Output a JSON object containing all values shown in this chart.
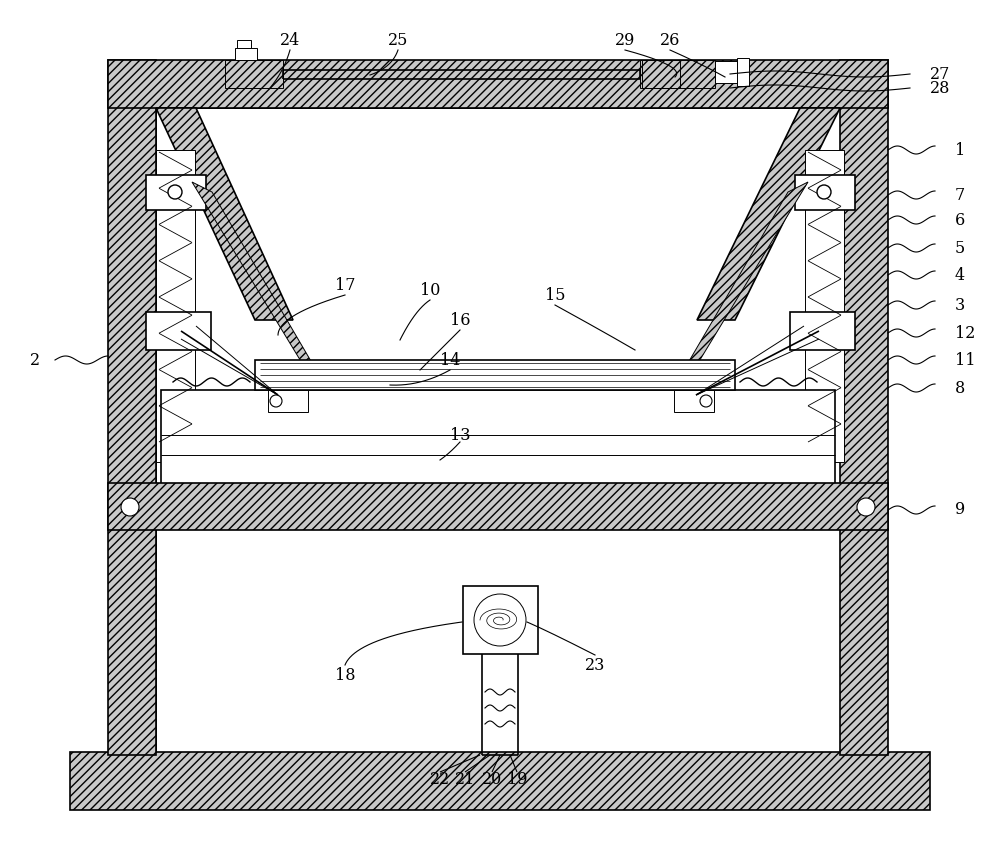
{
  "bg": "#ffffff",
  "lc": "#000000",
  "lw_thin": 0.7,
  "lw_med": 1.2,
  "lw_thick": 1.8,
  "fig_w": 10.0,
  "fig_h": 8.5,
  "dpi": 100
}
